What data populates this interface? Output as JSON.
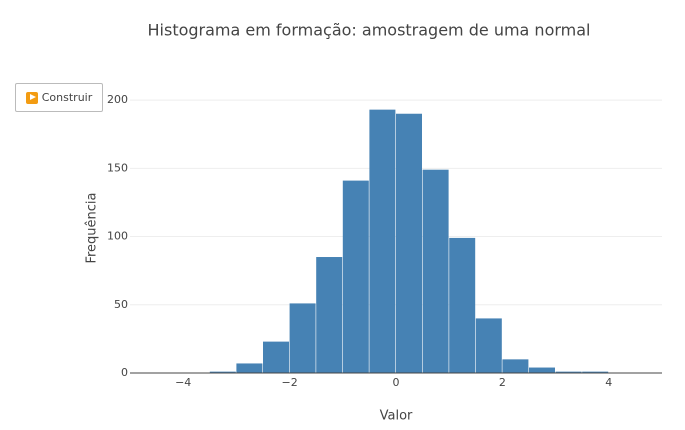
{
  "chart_data": {
    "type": "histogram",
    "title": "Histograma em formação: amostragem de uma normal",
    "x_label": "Valor",
    "y_label": "Frequência",
    "bins": [
      -3.5,
      -3,
      -2.5,
      -2,
      -1.5,
      -1,
      -0.5,
      0,
      0.5,
      1,
      1.5,
      2,
      2.5,
      3,
      3.5,
      4
    ],
    "values": [
      1,
      7,
      23,
      51,
      85,
      141,
      193,
      190,
      149,
      99,
      40,
      10,
      4,
      1,
      1
    ],
    "color": "#4682b4",
    "xlim": [
      -5,
      5
    ],
    "xticks": [
      {
        "value": -4,
        "label": "−4"
      },
      {
        "value": -2,
        "label": "−2"
      },
      0,
      2,
      4
    ],
    "ylim": [
      0,
      203
    ],
    "yticks": [
      0,
      50,
      100,
      150,
      200
    ],
    "grid": true
  },
  "controls": {
    "button": "Construir"
  }
}
